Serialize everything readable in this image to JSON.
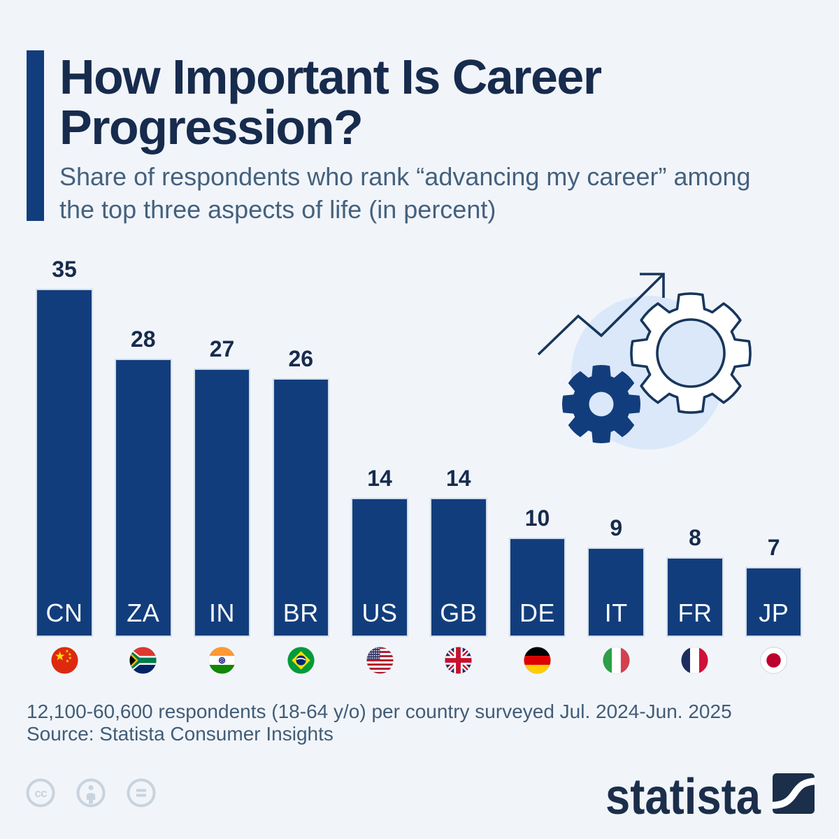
{
  "header": {
    "title": "How Important Is Career Progression?",
    "title_lines": [
      "How Important Is Career",
      "Progression?"
    ],
    "subtitle": "Share of respondents who rank “advancing my career” among the top three aspects of life (in percent)"
  },
  "chart_data": {
    "type": "bar",
    "title": "How Important Is Career Progression?",
    "subtitle": "Share of respondents who rank “advancing my career” among the top three aspects of life (in percent)",
    "unit": "percent",
    "categories": [
      "CN",
      "ZA",
      "IN",
      "BR",
      "US",
      "GB",
      "DE",
      "IT",
      "FR",
      "JP"
    ],
    "values": [
      35,
      28,
      27,
      26,
      14,
      14,
      10,
      9,
      8,
      7
    ],
    "flags": [
      "cn",
      "za",
      "in",
      "br",
      "us",
      "gb",
      "de",
      "it",
      "fr",
      "jp"
    ],
    "ylim": [
      0,
      35
    ],
    "grid": false,
    "value_labels": true,
    "legend": null
  },
  "footer": {
    "note": "12,100-60,600 respondents (18-64 y/o) per country surveyed Jul. 2024-Jun. 2025",
    "source": "Source: Statista Consumer Insights"
  },
  "branding": {
    "logo_text": "statista"
  },
  "license": {
    "icons": [
      "cc-icon",
      "attribution-icon",
      "equals-icon"
    ]
  },
  "colors": {
    "background": "#f1f5fa",
    "bar": "#123d7c",
    "bar_border": "#d3deea",
    "title": "#172b4d",
    "subtitle": "#45617d",
    "value_label": "#172b4d",
    "bar_code_text": "#fafcff",
    "footer_text": "#415c77",
    "license_icon": "#c9d3dd",
    "logo": "#1b2e4a",
    "illustration_outline": "#17365c",
    "illustration_light": "#dbe8f9"
  }
}
